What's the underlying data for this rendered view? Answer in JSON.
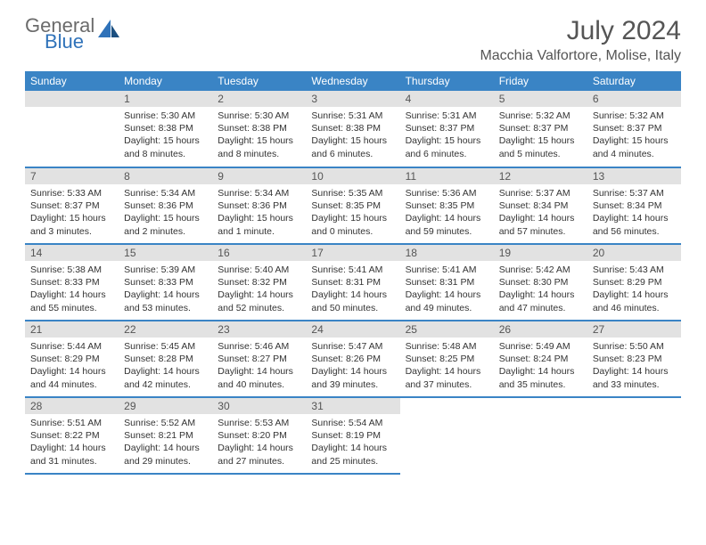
{
  "brand": {
    "general": "General",
    "blue": "Blue"
  },
  "title": "July 2024",
  "location": "Macchia Valfortore, Molise, Italy",
  "colors": {
    "header_bg": "#3a84c5",
    "header_text": "#ffffff",
    "daynum_bg": "#e2e2e2",
    "border": "#3a84c5",
    "title_color": "#555555",
    "body_text": "#333333"
  },
  "weekdays": [
    "Sunday",
    "Monday",
    "Tuesday",
    "Wednesday",
    "Thursday",
    "Friday",
    "Saturday"
  ],
  "weeks": [
    [
      {
        "n": "",
        "lines": []
      },
      {
        "n": "1",
        "lines": [
          "Sunrise: 5:30 AM",
          "Sunset: 8:38 PM",
          "Daylight: 15 hours and 8 minutes."
        ]
      },
      {
        "n": "2",
        "lines": [
          "Sunrise: 5:30 AM",
          "Sunset: 8:38 PM",
          "Daylight: 15 hours and 8 minutes."
        ]
      },
      {
        "n": "3",
        "lines": [
          "Sunrise: 5:31 AM",
          "Sunset: 8:38 PM",
          "Daylight: 15 hours and 6 minutes."
        ]
      },
      {
        "n": "4",
        "lines": [
          "Sunrise: 5:31 AM",
          "Sunset: 8:37 PM",
          "Daylight: 15 hours and 6 minutes."
        ]
      },
      {
        "n": "5",
        "lines": [
          "Sunrise: 5:32 AM",
          "Sunset: 8:37 PM",
          "Daylight: 15 hours and 5 minutes."
        ]
      },
      {
        "n": "6",
        "lines": [
          "Sunrise: 5:32 AM",
          "Sunset: 8:37 PM",
          "Daylight: 15 hours and 4 minutes."
        ]
      }
    ],
    [
      {
        "n": "7",
        "lines": [
          "Sunrise: 5:33 AM",
          "Sunset: 8:37 PM",
          "Daylight: 15 hours and 3 minutes."
        ]
      },
      {
        "n": "8",
        "lines": [
          "Sunrise: 5:34 AM",
          "Sunset: 8:36 PM",
          "Daylight: 15 hours and 2 minutes."
        ]
      },
      {
        "n": "9",
        "lines": [
          "Sunrise: 5:34 AM",
          "Sunset: 8:36 PM",
          "Daylight: 15 hours and 1 minute."
        ]
      },
      {
        "n": "10",
        "lines": [
          "Sunrise: 5:35 AM",
          "Sunset: 8:35 PM",
          "Daylight: 15 hours and 0 minutes."
        ]
      },
      {
        "n": "11",
        "lines": [
          "Sunrise: 5:36 AM",
          "Sunset: 8:35 PM",
          "Daylight: 14 hours and 59 minutes."
        ]
      },
      {
        "n": "12",
        "lines": [
          "Sunrise: 5:37 AM",
          "Sunset: 8:34 PM",
          "Daylight: 14 hours and 57 minutes."
        ]
      },
      {
        "n": "13",
        "lines": [
          "Sunrise: 5:37 AM",
          "Sunset: 8:34 PM",
          "Daylight: 14 hours and 56 minutes."
        ]
      }
    ],
    [
      {
        "n": "14",
        "lines": [
          "Sunrise: 5:38 AM",
          "Sunset: 8:33 PM",
          "Daylight: 14 hours and 55 minutes."
        ]
      },
      {
        "n": "15",
        "lines": [
          "Sunrise: 5:39 AM",
          "Sunset: 8:33 PM",
          "Daylight: 14 hours and 53 minutes."
        ]
      },
      {
        "n": "16",
        "lines": [
          "Sunrise: 5:40 AM",
          "Sunset: 8:32 PM",
          "Daylight: 14 hours and 52 minutes."
        ]
      },
      {
        "n": "17",
        "lines": [
          "Sunrise: 5:41 AM",
          "Sunset: 8:31 PM",
          "Daylight: 14 hours and 50 minutes."
        ]
      },
      {
        "n": "18",
        "lines": [
          "Sunrise: 5:41 AM",
          "Sunset: 8:31 PM",
          "Daylight: 14 hours and 49 minutes."
        ]
      },
      {
        "n": "19",
        "lines": [
          "Sunrise: 5:42 AM",
          "Sunset: 8:30 PM",
          "Daylight: 14 hours and 47 minutes."
        ]
      },
      {
        "n": "20",
        "lines": [
          "Sunrise: 5:43 AM",
          "Sunset: 8:29 PM",
          "Daylight: 14 hours and 46 minutes."
        ]
      }
    ],
    [
      {
        "n": "21",
        "lines": [
          "Sunrise: 5:44 AM",
          "Sunset: 8:29 PM",
          "Daylight: 14 hours and 44 minutes."
        ]
      },
      {
        "n": "22",
        "lines": [
          "Sunrise: 5:45 AM",
          "Sunset: 8:28 PM",
          "Daylight: 14 hours and 42 minutes."
        ]
      },
      {
        "n": "23",
        "lines": [
          "Sunrise: 5:46 AM",
          "Sunset: 8:27 PM",
          "Daylight: 14 hours and 40 minutes."
        ]
      },
      {
        "n": "24",
        "lines": [
          "Sunrise: 5:47 AM",
          "Sunset: 8:26 PM",
          "Daylight: 14 hours and 39 minutes."
        ]
      },
      {
        "n": "25",
        "lines": [
          "Sunrise: 5:48 AM",
          "Sunset: 8:25 PM",
          "Daylight: 14 hours and 37 minutes."
        ]
      },
      {
        "n": "26",
        "lines": [
          "Sunrise: 5:49 AM",
          "Sunset: 8:24 PM",
          "Daylight: 14 hours and 35 minutes."
        ]
      },
      {
        "n": "27",
        "lines": [
          "Sunrise: 5:50 AM",
          "Sunset: 8:23 PM",
          "Daylight: 14 hours and 33 minutes."
        ]
      }
    ],
    [
      {
        "n": "28",
        "lines": [
          "Sunrise: 5:51 AM",
          "Sunset: 8:22 PM",
          "Daylight: 14 hours and 31 minutes."
        ]
      },
      {
        "n": "29",
        "lines": [
          "Sunrise: 5:52 AM",
          "Sunset: 8:21 PM",
          "Daylight: 14 hours and 29 minutes."
        ]
      },
      {
        "n": "30",
        "lines": [
          "Sunrise: 5:53 AM",
          "Sunset: 8:20 PM",
          "Daylight: 14 hours and 27 minutes."
        ]
      },
      {
        "n": "31",
        "lines": [
          "Sunrise: 5:54 AM",
          "Sunset: 8:19 PM",
          "Daylight: 14 hours and 25 minutes."
        ]
      },
      {
        "n": "",
        "lines": []
      },
      {
        "n": "",
        "lines": []
      },
      {
        "n": "",
        "lines": []
      }
    ]
  ]
}
